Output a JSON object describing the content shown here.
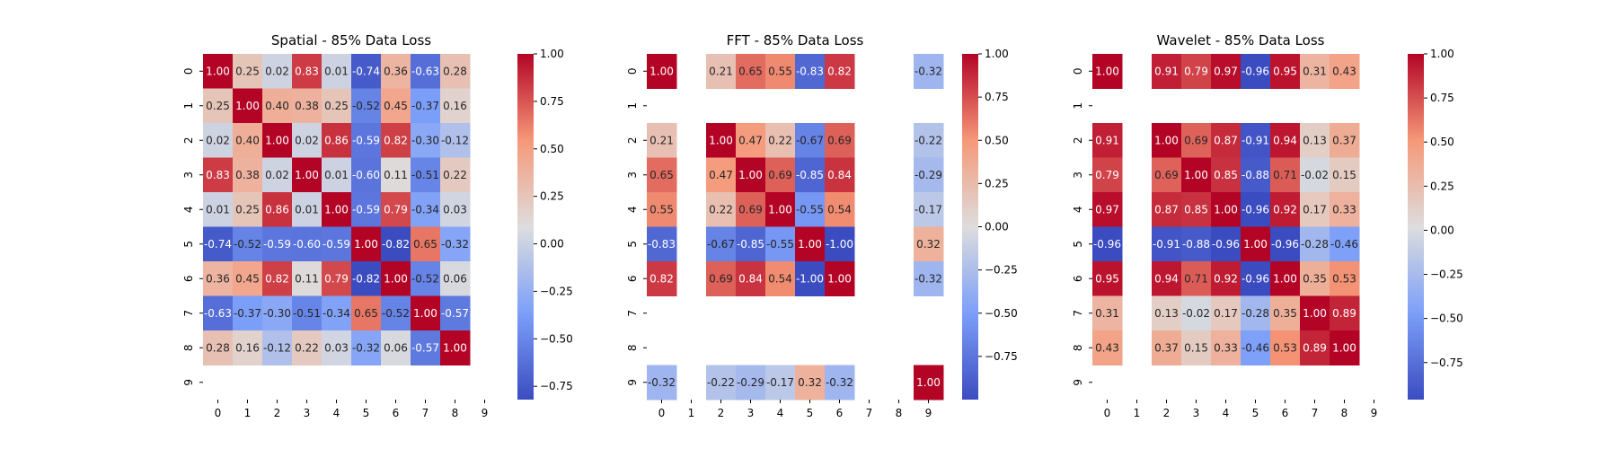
{
  "chart_data": [
    {
      "type": "heatmap",
      "title": "Spatial - 85% Data Loss",
      "x_ticks": [
        "0",
        "1",
        "2",
        "3",
        "4",
        "5",
        "6",
        "7",
        "8",
        "9"
      ],
      "y_ticks": [
        "0",
        "1",
        "2",
        "3",
        "4",
        "5",
        "6",
        "7",
        "8",
        "9"
      ],
      "colorbar_ticks": [
        "1.00",
        "0.75",
        "0.50",
        "0.25",
        "0.00",
        "−0.25",
        "−0.50",
        "−0.75"
      ],
      "colorbar_range": [
        -0.82,
        1.0
      ],
      "colormap": "coolwarm",
      "values": [
        [
          1.0,
          0.25,
          0.02,
          0.83,
          0.01,
          -0.74,
          0.36,
          -0.63,
          0.28,
          null
        ],
        [
          0.25,
          1.0,
          0.4,
          0.38,
          0.25,
          -0.52,
          0.45,
          -0.37,
          0.16,
          null
        ],
        [
          0.02,
          0.4,
          1.0,
          0.02,
          0.86,
          -0.59,
          0.82,
          -0.3,
          -0.12,
          null
        ],
        [
          0.83,
          0.38,
          0.02,
          1.0,
          0.01,
          -0.6,
          0.11,
          -0.51,
          0.22,
          null
        ],
        [
          0.01,
          0.25,
          0.86,
          0.01,
          1.0,
          -0.59,
          0.79,
          -0.34,
          0.03,
          null
        ],
        [
          -0.74,
          -0.52,
          -0.59,
          -0.6,
          -0.59,
          1.0,
          -0.82,
          0.65,
          -0.32,
          null
        ],
        [
          0.36,
          0.45,
          0.82,
          0.11,
          0.79,
          -0.82,
          1.0,
          -0.52,
          0.06,
          null
        ],
        [
          -0.63,
          -0.37,
          -0.3,
          -0.51,
          -0.34,
          0.65,
          -0.52,
          1.0,
          -0.57,
          null
        ],
        [
          0.28,
          0.16,
          -0.12,
          0.22,
          0.03,
          -0.32,
          0.06,
          -0.57,
          1.0,
          null
        ],
        [
          null,
          null,
          null,
          null,
          null,
          null,
          null,
          null,
          null,
          null
        ]
      ]
    },
    {
      "type": "heatmap",
      "title": "FFT - 85% Data Loss",
      "x_ticks": [
        "0",
        "1",
        "2",
        "3",
        "4",
        "5",
        "6",
        "7",
        "8",
        "9"
      ],
      "y_ticks": [
        "0",
        "1",
        "2",
        "3",
        "4",
        "5",
        "6",
        "7",
        "8",
        "9"
      ],
      "colorbar_ticks": [
        "1.00",
        "0.75",
        "0.50",
        "0.25",
        "0.00",
        "−0.25",
        "−0.50",
        "−0.75"
      ],
      "colorbar_range": [
        -1.0,
        1.0
      ],
      "colormap": "coolwarm",
      "values": [
        [
          1.0,
          null,
          0.21,
          0.65,
          0.55,
          -0.83,
          0.82,
          null,
          null,
          -0.32
        ],
        [
          null,
          null,
          null,
          null,
          null,
          null,
          null,
          null,
          null,
          null
        ],
        [
          0.21,
          null,
          1.0,
          0.47,
          0.22,
          -0.67,
          0.69,
          null,
          null,
          -0.22
        ],
        [
          0.65,
          null,
          0.47,
          1.0,
          0.69,
          -0.85,
          0.84,
          null,
          null,
          -0.29
        ],
        [
          0.55,
          null,
          0.22,
          0.69,
          1.0,
          -0.55,
          0.54,
          null,
          null,
          -0.17
        ],
        [
          -0.83,
          null,
          -0.67,
          -0.85,
          -0.55,
          1.0,
          -1.0,
          null,
          null,
          0.32
        ],
        [
          0.82,
          null,
          0.69,
          0.84,
          0.54,
          -1.0,
          1.0,
          null,
          null,
          -0.32
        ],
        [
          null,
          null,
          null,
          null,
          null,
          null,
          null,
          null,
          null,
          null
        ],
        [
          null,
          null,
          null,
          null,
          null,
          null,
          null,
          null,
          null,
          null
        ],
        [
          -0.32,
          null,
          -0.22,
          -0.29,
          -0.17,
          0.32,
          -0.32,
          null,
          null,
          1.0
        ]
      ]
    },
    {
      "type": "heatmap",
      "title": "Wavelet - 85% Data Loss",
      "x_ticks": [
        "0",
        "1",
        "2",
        "3",
        "4",
        "5",
        "6",
        "7",
        "8",
        "9"
      ],
      "y_ticks": [
        "0",
        "1",
        "2",
        "3",
        "4",
        "5",
        "6",
        "7",
        "8",
        "9"
      ],
      "colorbar_ticks": [
        "1.00",
        "0.75",
        "0.50",
        "0.25",
        "0.00",
        "−0.25",
        "−0.50",
        "−0.75"
      ],
      "colorbar_range": [
        -0.96,
        1.0
      ],
      "colormap": "coolwarm",
      "values": [
        [
          1.0,
          null,
          0.91,
          0.79,
          0.97,
          -0.96,
          0.95,
          0.31,
          0.43,
          null
        ],
        [
          null,
          null,
          null,
          null,
          null,
          null,
          null,
          null,
          null,
          null
        ],
        [
          0.91,
          null,
          1.0,
          0.69,
          0.87,
          -0.91,
          0.94,
          0.13,
          0.37,
          null
        ],
        [
          0.79,
          null,
          0.69,
          1.0,
          0.85,
          -0.88,
          0.71,
          -0.02,
          0.15,
          null
        ],
        [
          0.97,
          null,
          0.87,
          0.85,
          1.0,
          -0.96,
          0.92,
          0.17,
          0.33,
          null
        ],
        [
          -0.96,
          null,
          -0.91,
          -0.88,
          -0.96,
          1.0,
          -0.96,
          -0.28,
          -0.46,
          null
        ],
        [
          0.95,
          null,
          0.94,
          0.71,
          0.92,
          -0.96,
          1.0,
          0.35,
          0.53,
          null
        ],
        [
          0.31,
          null,
          0.13,
          -0.02,
          0.17,
          -0.28,
          0.35,
          1.0,
          0.89,
          null
        ],
        [
          0.43,
          null,
          0.37,
          0.15,
          0.33,
          -0.46,
          0.53,
          0.89,
          1.0,
          null
        ],
        [
          null,
          null,
          null,
          null,
          null,
          null,
          null,
          null,
          null,
          null
        ]
      ]
    }
  ]
}
